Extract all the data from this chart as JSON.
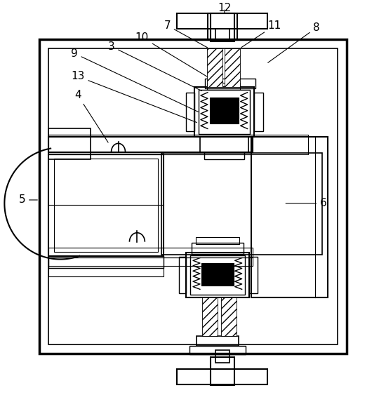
{
  "bg_color": "#ffffff",
  "lc": "#000000",
  "fig_width": 5.5,
  "fig_height": 5.63
}
